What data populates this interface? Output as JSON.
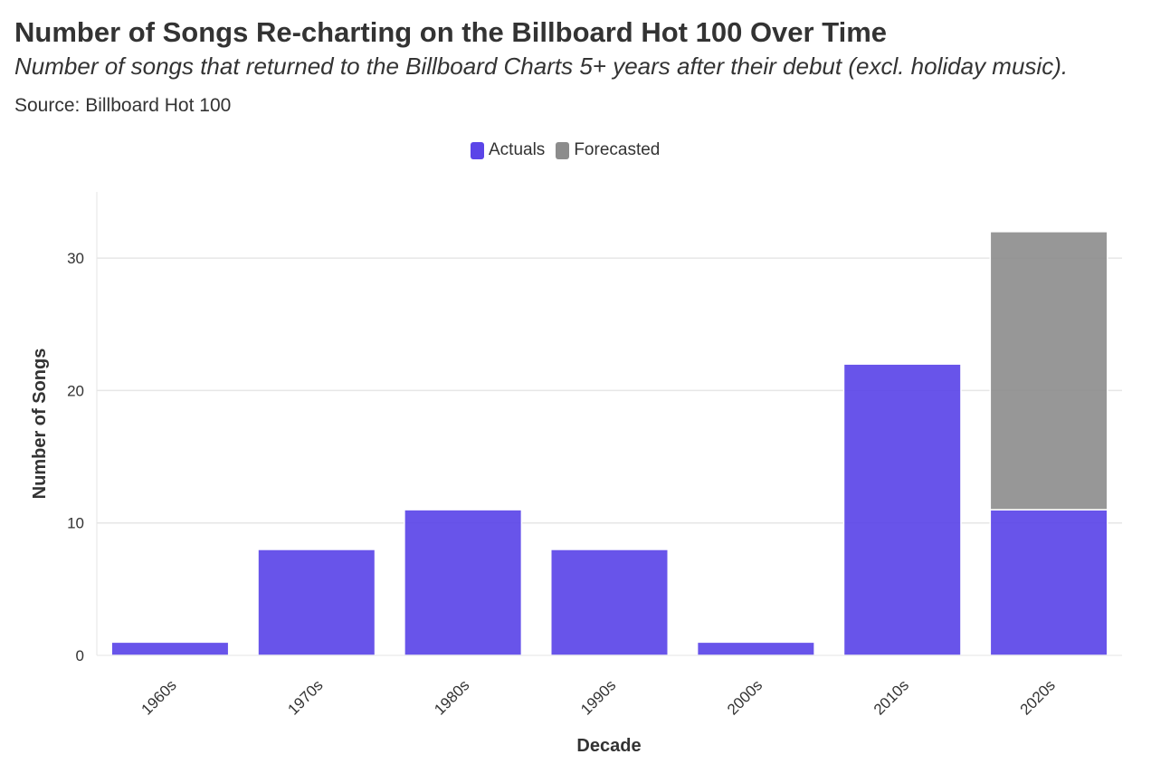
{
  "title": "Number of Songs Re-charting on the Billboard Hot 100 Over Time",
  "subtitle": "Number of songs that returned to the Billboard Charts 5+ years after their debut (excl. holiday music).",
  "source": "Source: Billboard Hot 100",
  "colors": {
    "actuals": "#5b45e8",
    "forecasted": "#8c8c8c",
    "grid": "#e6e6e6"
  },
  "chart_data": {
    "type": "bar",
    "stacked": true,
    "categories": [
      "1960s",
      "1970s",
      "1980s",
      "1990s",
      "2000s",
      "2010s",
      "2020s"
    ],
    "series": [
      {
        "name": "Actuals",
        "values": [
          1,
          8,
          11,
          8,
          1,
          22,
          11
        ]
      },
      {
        "name": "Forecasted",
        "values": [
          0,
          0,
          0,
          0,
          0,
          0,
          21
        ]
      }
    ],
    "xlabel": "Decade",
    "ylabel": "Number of Songs",
    "ylim": [
      0,
      35
    ],
    "yticks": [
      0,
      10,
      20,
      30
    ],
    "grid": true,
    "legend_position": "top-center"
  }
}
